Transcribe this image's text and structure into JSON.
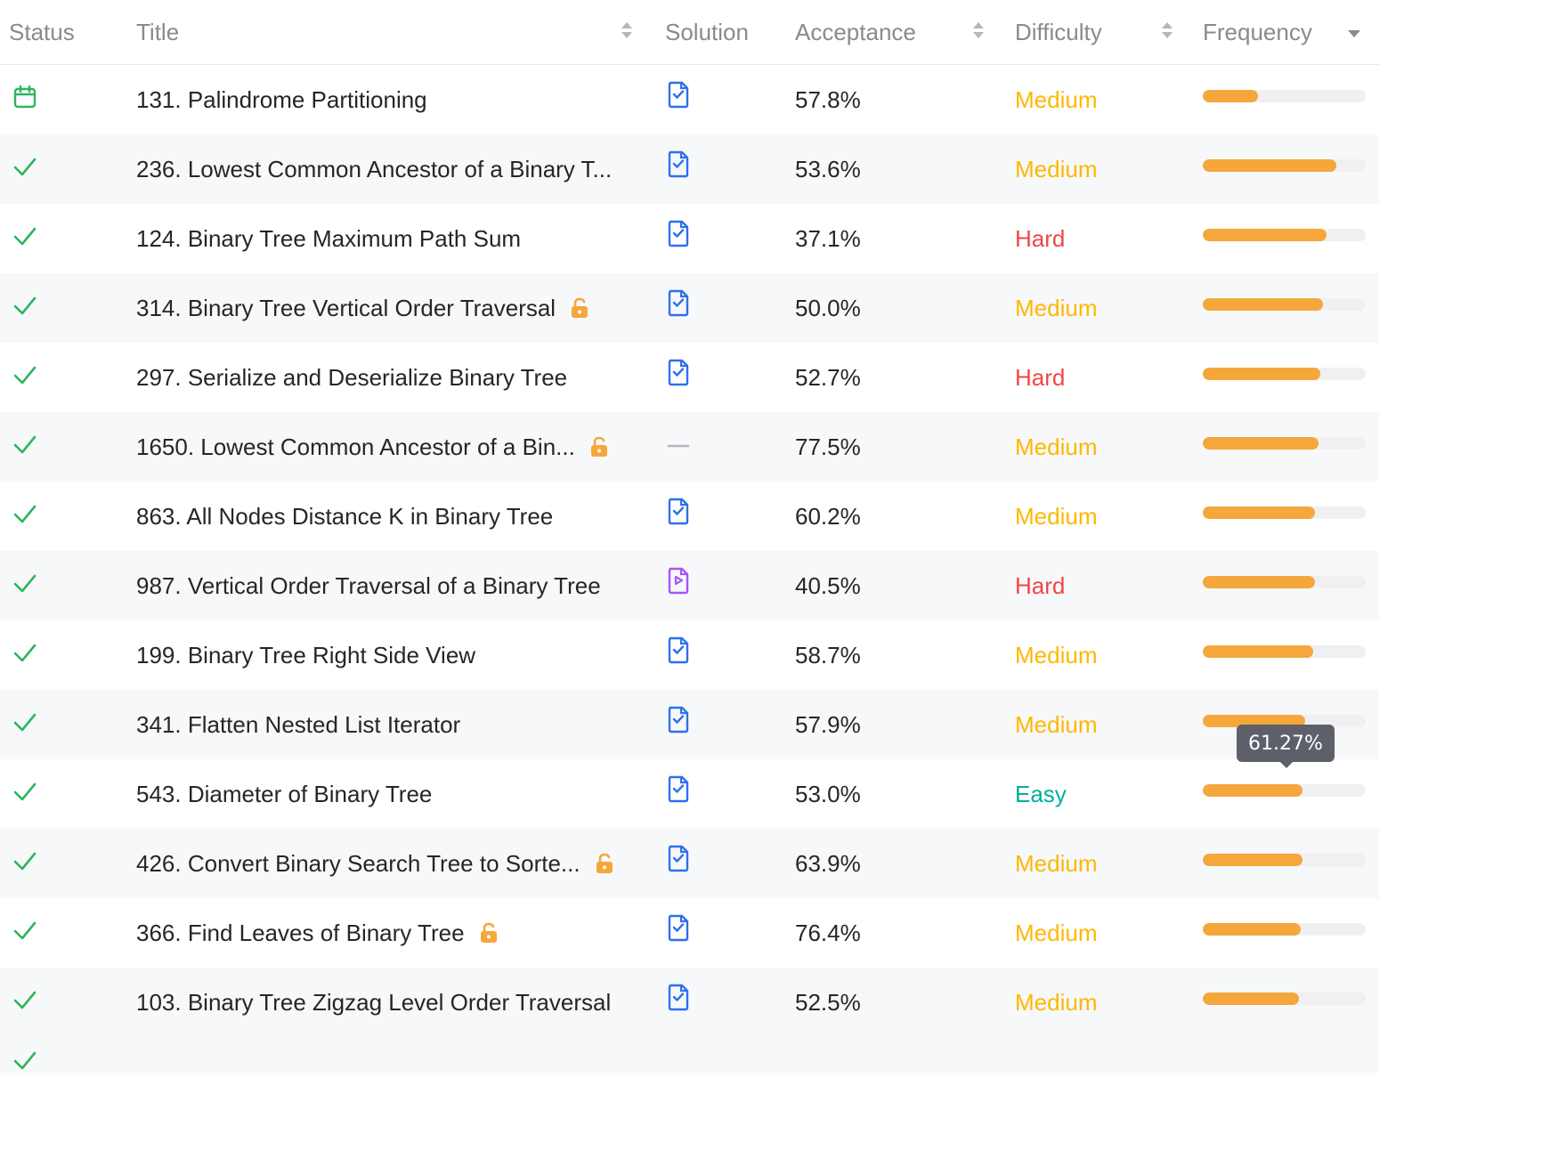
{
  "header": {
    "status": "Status",
    "title": "Title",
    "solution": "Solution",
    "acceptance": "Acceptance",
    "difficulty": "Difficulty",
    "frequency": "Frequency"
  },
  "colors": {
    "medium": "#ffb700",
    "hard": "#ef4743",
    "easy": "#00af9b",
    "check": "#2db55d",
    "article_icon": "#2f6fed",
    "video_icon": "#a855f7",
    "lock": "#f5a73b",
    "bar": "#f5a73b"
  },
  "rows": [
    {
      "status": "calendar",
      "title": "131. Palindrome Partitioning",
      "locked": false,
      "solution": "article",
      "acceptance": "57.8%",
      "difficulty": "Medium",
      "frequency": 0.34
    },
    {
      "status": "solved",
      "title": "236. Lowest Common Ancestor of a Binary T...",
      "locked": false,
      "solution": "article",
      "acceptance": "53.6%",
      "difficulty": "Medium",
      "frequency": 0.82
    },
    {
      "status": "solved",
      "title": "124. Binary Tree Maximum Path Sum",
      "locked": false,
      "solution": "article",
      "acceptance": "37.1%",
      "difficulty": "Hard",
      "frequency": 0.76
    },
    {
      "status": "solved",
      "title": "314. Binary Tree Vertical Order Traversal",
      "locked": true,
      "solution": "article",
      "acceptance": "50.0%",
      "difficulty": "Medium",
      "frequency": 0.74
    },
    {
      "status": "solved",
      "title": "297. Serialize and Deserialize Binary Tree",
      "locked": false,
      "solution": "article",
      "acceptance": "52.7%",
      "difficulty": "Hard",
      "frequency": 0.72
    },
    {
      "status": "solved",
      "title": "1650. Lowest Common Ancestor of a Bin...",
      "locked": true,
      "solution": "none",
      "acceptance": "77.5%",
      "difficulty": "Medium",
      "frequency": 0.71
    },
    {
      "status": "solved",
      "title": "863. All Nodes Distance K in Binary Tree",
      "locked": false,
      "solution": "article",
      "acceptance": "60.2%",
      "difficulty": "Medium",
      "frequency": 0.69
    },
    {
      "status": "solved",
      "title": "987. Vertical Order Traversal of a Binary Tree",
      "locked": false,
      "solution": "video",
      "acceptance": "40.5%",
      "difficulty": "Hard",
      "frequency": 0.69
    },
    {
      "status": "solved",
      "title": "199. Binary Tree Right Side View",
      "locked": false,
      "solution": "article",
      "acceptance": "58.7%",
      "difficulty": "Medium",
      "frequency": 0.68
    },
    {
      "status": "solved",
      "title": "341. Flatten Nested List Iterator",
      "locked": false,
      "solution": "article",
      "acceptance": "57.9%",
      "difficulty": "Medium",
      "frequency": 0.63
    },
    {
      "status": "solved",
      "title": "543. Diameter of Binary Tree",
      "locked": false,
      "solution": "article",
      "acceptance": "53.0%",
      "difficulty": "Easy",
      "frequency": 0.6127
    },
    {
      "status": "solved",
      "title": "426. Convert Binary Search Tree to Sorte...",
      "locked": true,
      "solution": "article",
      "acceptance": "63.9%",
      "difficulty": "Medium",
      "frequency": 0.61
    },
    {
      "status": "solved",
      "title": "366. Find Leaves of Binary Tree",
      "locked": true,
      "solution": "article",
      "acceptance": "76.4%",
      "difficulty": "Medium",
      "frequency": 0.6
    },
    {
      "status": "solved",
      "title": "103. Binary Tree Zigzag Level Order Traversal",
      "locked": false,
      "solution": "article",
      "acceptance": "52.5%",
      "difficulty": "Medium",
      "frequency": 0.59
    }
  ],
  "tooltip": {
    "text": "61.27%"
  }
}
